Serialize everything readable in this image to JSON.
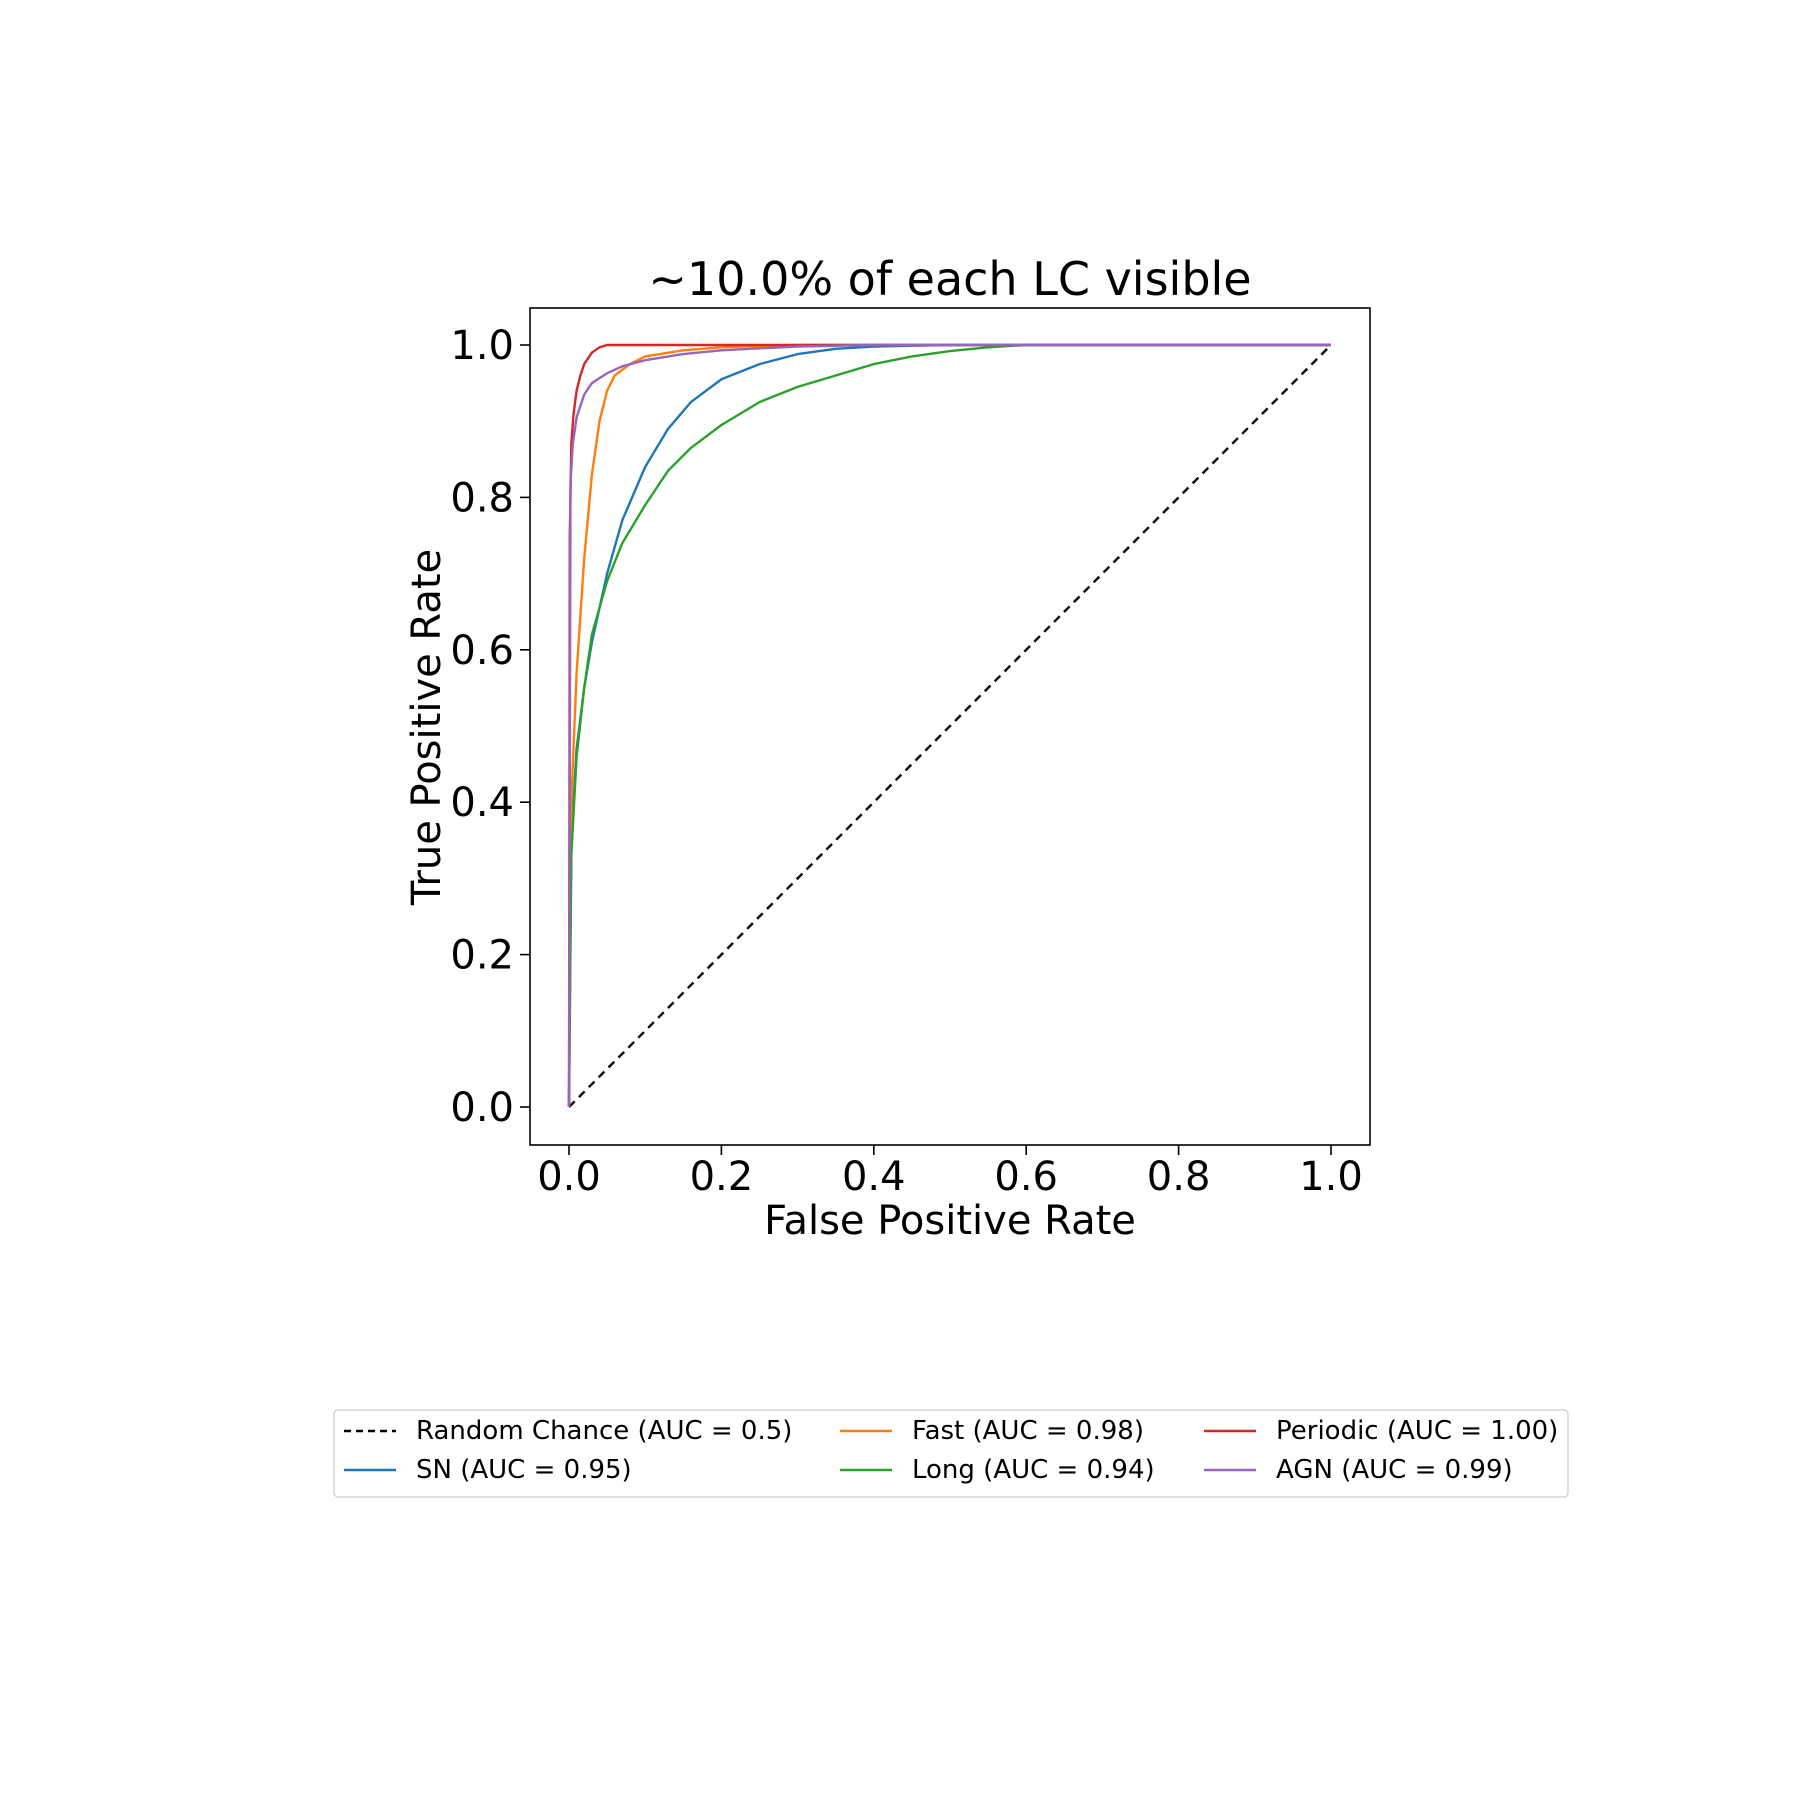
{
  "chart_data": {
    "type": "line",
    "title": "~10.0% of each LC visible",
    "xlabel": "False Positive Rate",
    "ylabel": "True Positive Rate",
    "xlim": [
      -0.05,
      1.05
    ],
    "ylim": [
      -0.05,
      1.05
    ],
    "xticks": [
      "0.0",
      "0.2",
      "0.4",
      "0.6",
      "0.8",
      "1.0"
    ],
    "yticks": [
      "0.0",
      "0.2",
      "0.4",
      "0.6",
      "0.8",
      "1.0"
    ],
    "grid": false,
    "legend_placement": "below",
    "series": [
      {
        "name": "Random Chance (AUC = 0.5)",
        "color": "#000000",
        "dashed": true,
        "x": [
          0,
          1
        ],
        "y": [
          0,
          1
        ]
      },
      {
        "name": "SN (AUC = 0.95)",
        "color": "#1f77b4",
        "x": [
          0,
          0.003,
          0.01,
          0.02,
          0.03,
          0.05,
          0.07,
          0.1,
          0.13,
          0.16,
          0.2,
          0.25,
          0.3,
          0.35,
          0.4,
          0.5,
          0.6,
          1.0
        ],
        "y": [
          0,
          0.35,
          0.47,
          0.55,
          0.61,
          0.7,
          0.77,
          0.84,
          0.89,
          0.925,
          0.955,
          0.975,
          0.988,
          0.995,
          0.998,
          1.0,
          1.0,
          1.0
        ]
      },
      {
        "name": "Fast (AUC = 0.98)",
        "color": "#ff7f0e",
        "x": [
          0,
          0.003,
          0.01,
          0.02,
          0.03,
          0.04,
          0.05,
          0.06,
          0.08,
          0.1,
          0.15,
          0.2,
          0.3,
          1.0
        ],
        "y": [
          0,
          0.4,
          0.57,
          0.72,
          0.83,
          0.9,
          0.94,
          0.96,
          0.975,
          0.985,
          0.993,
          0.997,
          1.0,
          1.0
        ]
      },
      {
        "name": "Long (AUC = 0.94)",
        "color": "#2ca02c",
        "x": [
          0,
          0.003,
          0.01,
          0.02,
          0.03,
          0.05,
          0.07,
          0.1,
          0.13,
          0.16,
          0.2,
          0.25,
          0.3,
          0.35,
          0.4,
          0.45,
          0.5,
          0.55,
          0.6,
          1.0
        ],
        "y": [
          0,
          0.33,
          0.46,
          0.55,
          0.62,
          0.69,
          0.74,
          0.79,
          0.835,
          0.865,
          0.895,
          0.925,
          0.945,
          0.96,
          0.975,
          0.985,
          0.992,
          0.997,
          1.0,
          1.0
        ]
      },
      {
        "name": "Periodic (AUC = 1.00)",
        "color": "#d62728",
        "x": [
          0,
          0.001,
          0.003,
          0.006,
          0.01,
          0.015,
          0.02,
          0.03,
          0.04,
          0.05,
          0.06,
          1.0
        ],
        "y": [
          0,
          0.75,
          0.87,
          0.91,
          0.94,
          0.96,
          0.975,
          0.99,
          0.997,
          1.0,
          1.0,
          1.0
        ]
      },
      {
        "name": "AGN (AUC = 0.99)",
        "color": "#9467bd",
        "x": [
          0,
          0.002,
          0.005,
          0.01,
          0.02,
          0.03,
          0.05,
          0.07,
          0.1,
          0.15,
          0.2,
          0.3,
          0.4,
          1.0
        ],
        "y": [
          0,
          0.82,
          0.87,
          0.905,
          0.935,
          0.95,
          0.963,
          0.972,
          0.98,
          0.988,
          0.993,
          0.998,
          1.0,
          1.0
        ]
      }
    ]
  }
}
